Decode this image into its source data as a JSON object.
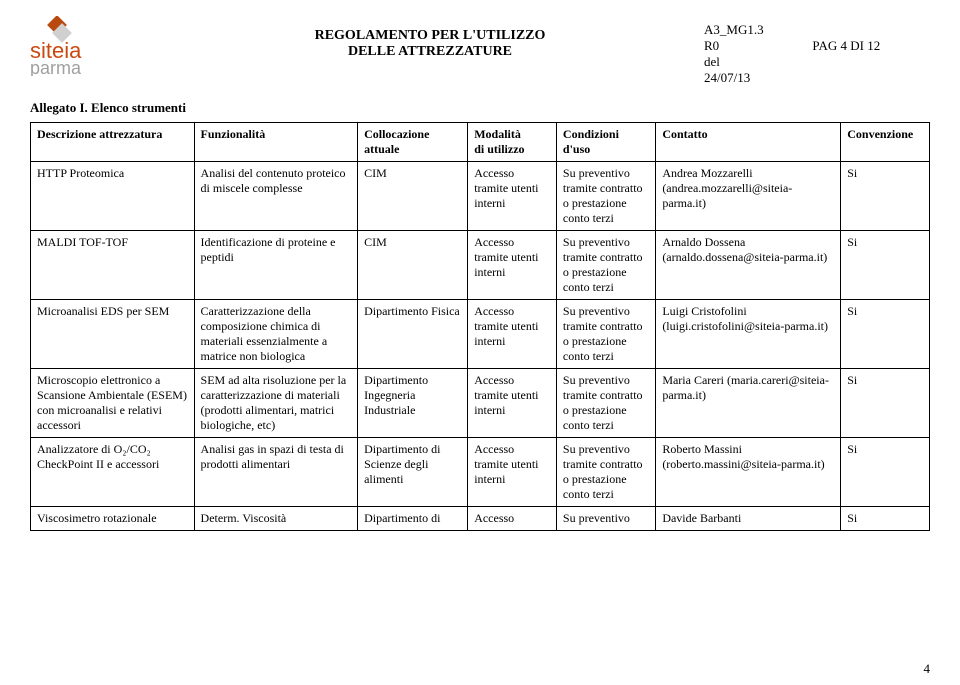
{
  "header": {
    "doc_code": "A3_MG1.3",
    "rev": "R0",
    "rev_date_1": "del",
    "rev_date_2": "24/07/13",
    "page_label": "PAG 4 DI 12",
    "title_1": "REGOLAMENTO PER L'UTILIZZO",
    "title_2": "DELLE ATTREZZATURE",
    "logo_text_a": "siteia",
    "logo_text_b": "parma"
  },
  "allegato": "Allegato I. Elenco strumenti",
  "cols": {
    "desc": "Descrizione attrezzatura",
    "func": "Funzionalità",
    "coll_1": "Collocazione",
    "coll_2": "attuale",
    "mod_1": "Modalità",
    "mod_2": "di utilizzo",
    "cond_1": "Condizioni",
    "cond_2": "d'uso",
    "cont": "Contatto",
    "conv": "Convenzione"
  },
  "rows": [
    {
      "desc": "HTTP Proteomica",
      "func": "Analisi del contenuto proteico di miscele complesse",
      "coll": "CIM",
      "mod": "Accesso tramite utenti interni",
      "cond": "Su preventivo tramite contratto o prestazione conto terzi",
      "cont": "Andrea Mozzarelli (andrea.mozzarelli@siteia-parma.it)",
      "conv": "Si"
    },
    {
      "desc": "MALDI TOF-TOF",
      "func": "Identificazione di proteine e peptidi",
      "coll": "CIM",
      "mod": "Accesso tramite utenti interni",
      "cond": "Su preventivo tramite contratto o prestazione conto terzi",
      "cont": "Arnaldo Dossena (arnaldo.dossena@siteia-parma.it)",
      "conv": "Si"
    },
    {
      "desc": "Microanalisi EDS per SEM",
      "func": "Caratterizzazione della composizione chimica di materiali essenzialmente a matrice non biologica",
      "coll": "Dipartimento Fisica",
      "mod": "Accesso tramite utenti interni",
      "cond": "Su preventivo tramite contratto o prestazione conto terzi",
      "cont": "Luigi Cristofolini (luigi.cristofolini@siteia-parma.it)",
      "conv": "Si"
    },
    {
      "desc": "Microscopio elettronico a Scansione Ambientale (ESEM) con microanalisi e relativi accessori",
      "func": "SEM ad alta risoluzione per la caratterizzazione di materiali (prodotti alimentari, matrici biologiche, etc)",
      "coll": "Dipartimento Ingegneria Industriale",
      "mod": "Accesso tramite utenti interni",
      "cond": "Su preventivo tramite contratto o prestazione conto terzi",
      "cont": "Maria Careri (maria.careri@siteia-parma.it)",
      "conv": "Si"
    },
    {
      "desc": "Analizzatore di O₂/CO₂ CheckPoint II e accessori",
      "func": "Analisi gas in spazi di testa di prodotti alimentari",
      "coll": "Dipartimento di Scienze degli alimenti",
      "mod": "Accesso tramite utenti interni",
      "cond": "Su preventivo tramite contratto o prestazione conto terzi",
      "cont": "Roberto Massini (roberto.massini@siteia-parma.it)",
      "conv": "Si"
    },
    {
      "desc": "Viscosimetro rotazionale",
      "func": "Determ. Viscosità",
      "coll": "Dipartimento di",
      "mod": "Accesso",
      "cond": "Su preventivo",
      "cont": "Davide Barbanti",
      "conv": "Si"
    }
  ],
  "page_number": "4",
  "colors": {
    "logo_a": "#c94a10",
    "logo_b": "#8a8a8a",
    "logo_square": "#b94a0f"
  }
}
